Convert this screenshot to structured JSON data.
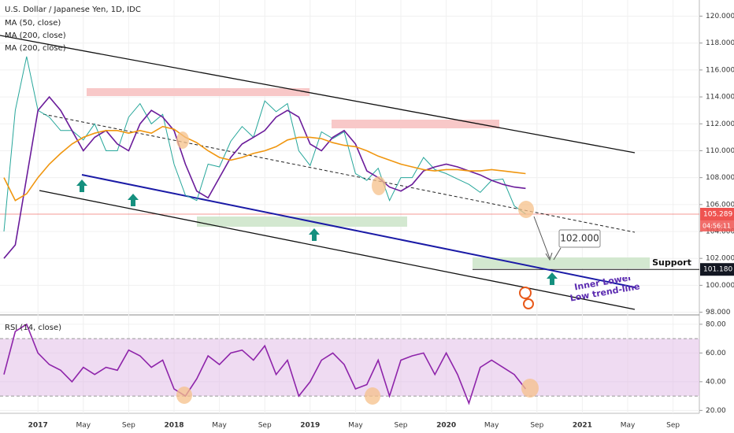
{
  "chart_data": [
    {
      "type": "line",
      "title": "U.S. Dollar / Japanese Yen, 1D, IDC",
      "categories": [
        null,
        null,
        null,
        "2017",
        null,
        null,
        null,
        "May",
        null,
        null,
        null,
        "Sep",
        null,
        null,
        null,
        "2018",
        null,
        null,
        null,
        "May",
        null,
        null,
        null,
        "Sep",
        null,
        null,
        null,
        "2019",
        null,
        null,
        null,
        "May",
        null,
        null,
        null,
        "Sep",
        null,
        null,
        null,
        "2020",
        null,
        null,
        null,
        "May",
        null,
        null,
        null,
        "Sep",
        null,
        null,
        null,
        "2021",
        null,
        null,
        null,
        "May",
        null,
        null,
        null,
        "Sep",
        null
      ],
      "series": [
        {
          "name": "U.S. Dollar / Japanese Yen, 1D, IDC",
          "color": "#26a69a",
          "values": [
            104,
            113,
            117,
            113,
            112.5,
            111.5,
            111.5,
            110.8,
            112,
            110,
            110,
            112.5,
            113.5,
            112,
            112.7,
            109,
            106.7,
            106.3,
            109,
            108.8,
            110.7,
            111.8,
            111,
            113.7,
            112.9,
            113.5,
            110,
            108.9,
            111.4,
            110.9,
            111.4,
            108.3,
            107.8,
            108.7,
            106.3,
            108,
            108,
            109.5,
            108.6,
            108.3,
            107.9,
            107.5,
            106.9,
            107.8,
            107.9,
            105.9,
            105.3,
            null,
            null,
            null,
            null,
            null,
            null,
            null,
            null,
            null,
            null,
            null,
            null,
            null,
            null
          ]
        },
        {
          "name": "MA (50, close)",
          "color": "#6a1b9a",
          "values": [
            102,
            103,
            108,
            113,
            114,
            113,
            111.5,
            110,
            111,
            111.5,
            110.5,
            110,
            112,
            113,
            112.5,
            111.5,
            109,
            107,
            106.5,
            108,
            109.5,
            110.5,
            111,
            111.5,
            112.5,
            113,
            112.5,
            110.5,
            110,
            111,
            111.5,
            110.5,
            108.5,
            108,
            107.3,
            107,
            107.5,
            108.5,
            108.8,
            109,
            108.8,
            108.5,
            108.2,
            107.8,
            107.5,
            107.3,
            107.2,
            null,
            null,
            null,
            null,
            null,
            null,
            null,
            null,
            null,
            null,
            null,
            null,
            null,
            null
          ]
        },
        {
          "name": "MA (200, close)",
          "color": "#f0960f",
          "values": [
            108,
            106.3,
            106.8,
            108,
            109,
            109.8,
            110.5,
            111,
            111.3,
            111.5,
            111.5,
            111.3,
            111.5,
            111.3,
            111.8,
            111.6,
            111,
            110.6,
            110,
            109.5,
            109.3,
            109.5,
            109.8,
            110,
            110.3,
            110.8,
            111,
            111,
            110.9,
            110.6,
            110.4,
            110.3,
            110,
            109.6,
            109.3,
            109,
            108.8,
            108.6,
            108.5,
            108.6,
            108.6,
            108.5,
            108.5,
            108.6,
            108.5,
            108.4,
            108.3,
            null,
            null,
            null,
            null,
            null,
            null,
            null,
            null,
            null,
            null,
            null,
            null,
            null,
            null
          ]
        }
      ],
      "extra_legend": [
        "MA (200, close)"
      ],
      "ylim": [
        97.8,
        121.2
      ],
      "yticks": [
        {
          "value": 98,
          "label": "98.000"
        },
        {
          "value": 100,
          "label": "100.000"
        },
        {
          "value": 102,
          "label": "102.000"
        },
        {
          "value": 104,
          "label": "104.000"
        },
        {
          "value": 106,
          "label": "106.000"
        },
        {
          "value": 108,
          "label": "108.000"
        },
        {
          "value": 110,
          "label": "110.000"
        },
        {
          "value": 112,
          "label": "112.000"
        },
        {
          "value": 114,
          "label": "114.000"
        },
        {
          "value": 116,
          "label": "116.000"
        },
        {
          "value": 118,
          "label": "118.000"
        },
        {
          "value": 120,
          "label": "120.000"
        }
      ],
      "last_price": 105.289,
      "last_price_color": "#ef5350",
      "countdown": "04:56:11",
      "support_price": {
        "value": 101.18,
        "label": "101.180"
      },
      "target": {
        "value": 102,
        "label": "102.000"
      },
      "support_label": "Support",
      "trendline_label": "Inner Lower Low trend-line"
    },
    {
      "type": "line",
      "title": "RSI (14, close)",
      "series": [
        {
          "color": "#8e24aa",
          "values": [
            45,
            75,
            80,
            60,
            52,
            48,
            40,
            50,
            45,
            50,
            48,
            62,
            58,
            50,
            55,
            35,
            30,
            42,
            58,
            52,
            60,
            62,
            55,
            65,
            45,
            55,
            30,
            40,
            55,
            60,
            52,
            35,
            38,
            55,
            30,
            55,
            58,
            60,
            45,
            60,
            45,
            25,
            50,
            55,
            50,
            45,
            35,
            null,
            null,
            null,
            null,
            null,
            null,
            null,
            null,
            null,
            null,
            null,
            null,
            null,
            null
          ]
        }
      ],
      "band": [
        30,
        70
      ],
      "ylim": [
        18,
        86.5
      ],
      "yticks": [
        {
          "value": 20,
          "label": "20.00"
        },
        {
          "value": 40,
          "label": "40.00"
        },
        {
          "value": 60,
          "label": "60.00"
        },
        {
          "value": 80,
          "label": "80.00"
        }
      ]
    }
  ]
}
